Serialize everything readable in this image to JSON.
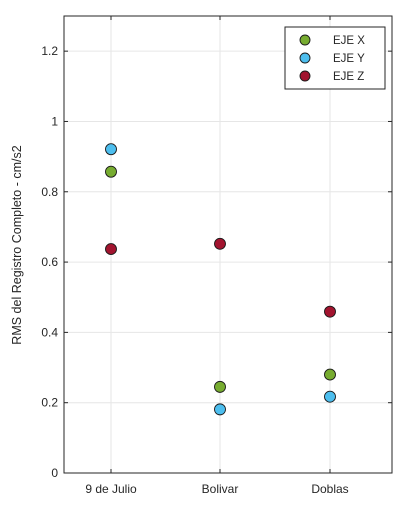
{
  "chart_data": {
    "type": "scatter",
    "title": "",
    "xlabel": "",
    "ylabel": "RMS del Registro Completo - cm/s2",
    "categories": [
      "9 de Julio",
      "Bolivar",
      "Doblas"
    ],
    "ylim": [
      0,
      1.3
    ],
    "yticks": [
      0,
      0.2,
      0.4,
      0.6,
      0.8,
      1,
      1.2
    ],
    "ytick_labels": [
      "0",
      "0.2",
      "0.4",
      "0.6",
      "0.8",
      "1",
      "1.2"
    ],
    "grid": true,
    "legend_position": "top-right",
    "series": [
      {
        "name": "EJE X",
        "color": "#77AC30",
        "values": [
          0.857,
          0.245,
          0.28
        ]
      },
      {
        "name": "EJE Y",
        "color": "#4DBEEE",
        "values": [
          0.921,
          0.181,
          0.217
        ]
      },
      {
        "name": "EJE Z",
        "color": "#A2142F",
        "values": [
          0.637,
          0.652,
          0.459
        ]
      }
    ]
  }
}
